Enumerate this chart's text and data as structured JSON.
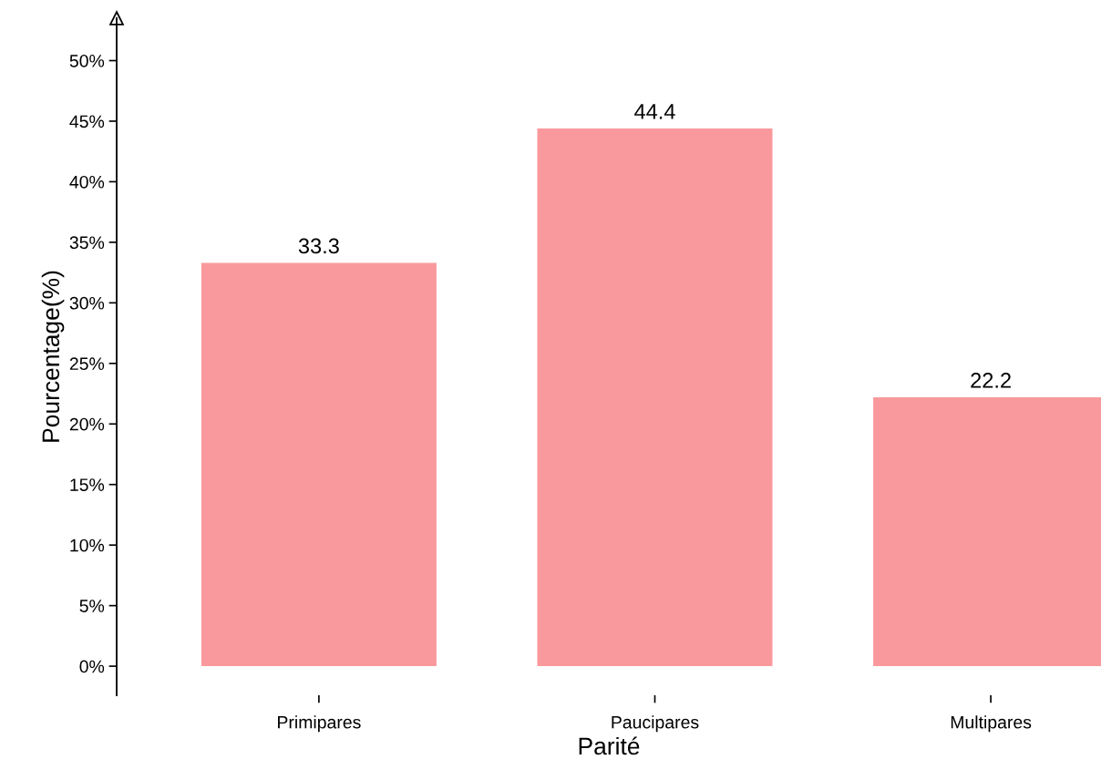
{
  "chart_data": {
    "type": "bar",
    "xlabel": "Parité",
    "ylabel": "Pourcentage(%)",
    "categories": [
      "Primipares",
      "Paucipares",
      "Multipares"
    ],
    "values": [
      33.3,
      44.4,
      22.2
    ],
    "color": "#fa999d",
    "ylim": [
      -2.4,
      53.5
    ],
    "yticks": [
      {
        "value": 0,
        "label": "0%"
      },
      {
        "value": 5,
        "label": "5%"
      },
      {
        "value": 10,
        "label": "10%"
      },
      {
        "value": 15,
        "label": "15%"
      },
      {
        "value": 20,
        "label": "20%"
      },
      {
        "value": 25,
        "label": "25%"
      },
      {
        "value": 30,
        "label": "30%"
      },
      {
        "value": 35,
        "label": "35%"
      },
      {
        "value": 40,
        "label": "40%"
      },
      {
        "value": 45,
        "label": "45%"
      },
      {
        "value": 50,
        "label": "50%"
      }
    ],
    "data_labels": true,
    "grid": false,
    "legend": false
  }
}
